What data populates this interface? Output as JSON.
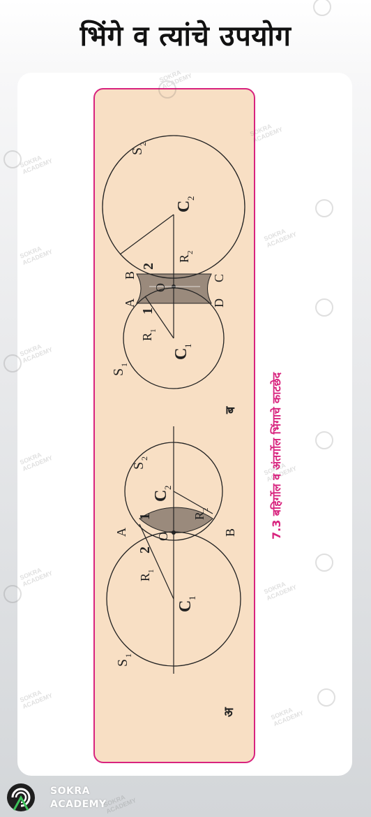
{
  "header": {
    "title": "भिंगे व त्यांचे उपयोग"
  },
  "figure": {
    "caption": "7.3 बहिर्गोल व अंतर्गोल भिंगाचे काटछेद",
    "panel_a": {
      "tag": "अ",
      "labels": {
        "s1": "S",
        "s1_sub": "1",
        "s2": "S",
        "s2_sub": "2",
        "a": "A",
        "b": "B",
        "o": "O",
        "c1": "C",
        "c1_sub": "1",
        "c2": "C",
        "c2_sub": "2",
        "r1": "R",
        "r1_sub": "1",
        "r2": "R",
        "r2_sub": "2",
        "one": "1",
        "two": "2"
      }
    },
    "panel_b": {
      "tag": "ब",
      "labels": {
        "s1": "S",
        "s1_sub": "1",
        "s2": "S",
        "s2_sub": "2",
        "a": "A",
        "b": "B",
        "c": "C",
        "d": "D",
        "o": "O",
        "c1": "C",
        "c1_sub": "1",
        "c2": "C",
        "c2_sub": "2",
        "r1": "R",
        "r1_sub": "1",
        "r2": "R",
        "r2_sub": "2",
        "one": "1",
        "two": "2"
      }
    }
  },
  "watermark": {
    "line1": "SOKRA",
    "line2": "ACADEMY"
  },
  "brand": {
    "line1": "SOKRA",
    "line2": "ACADEMY"
  },
  "colors": {
    "accent": "#d8237e",
    "panel_bg": "#f8dfc4",
    "lens_fill": "#9a8a7c"
  }
}
